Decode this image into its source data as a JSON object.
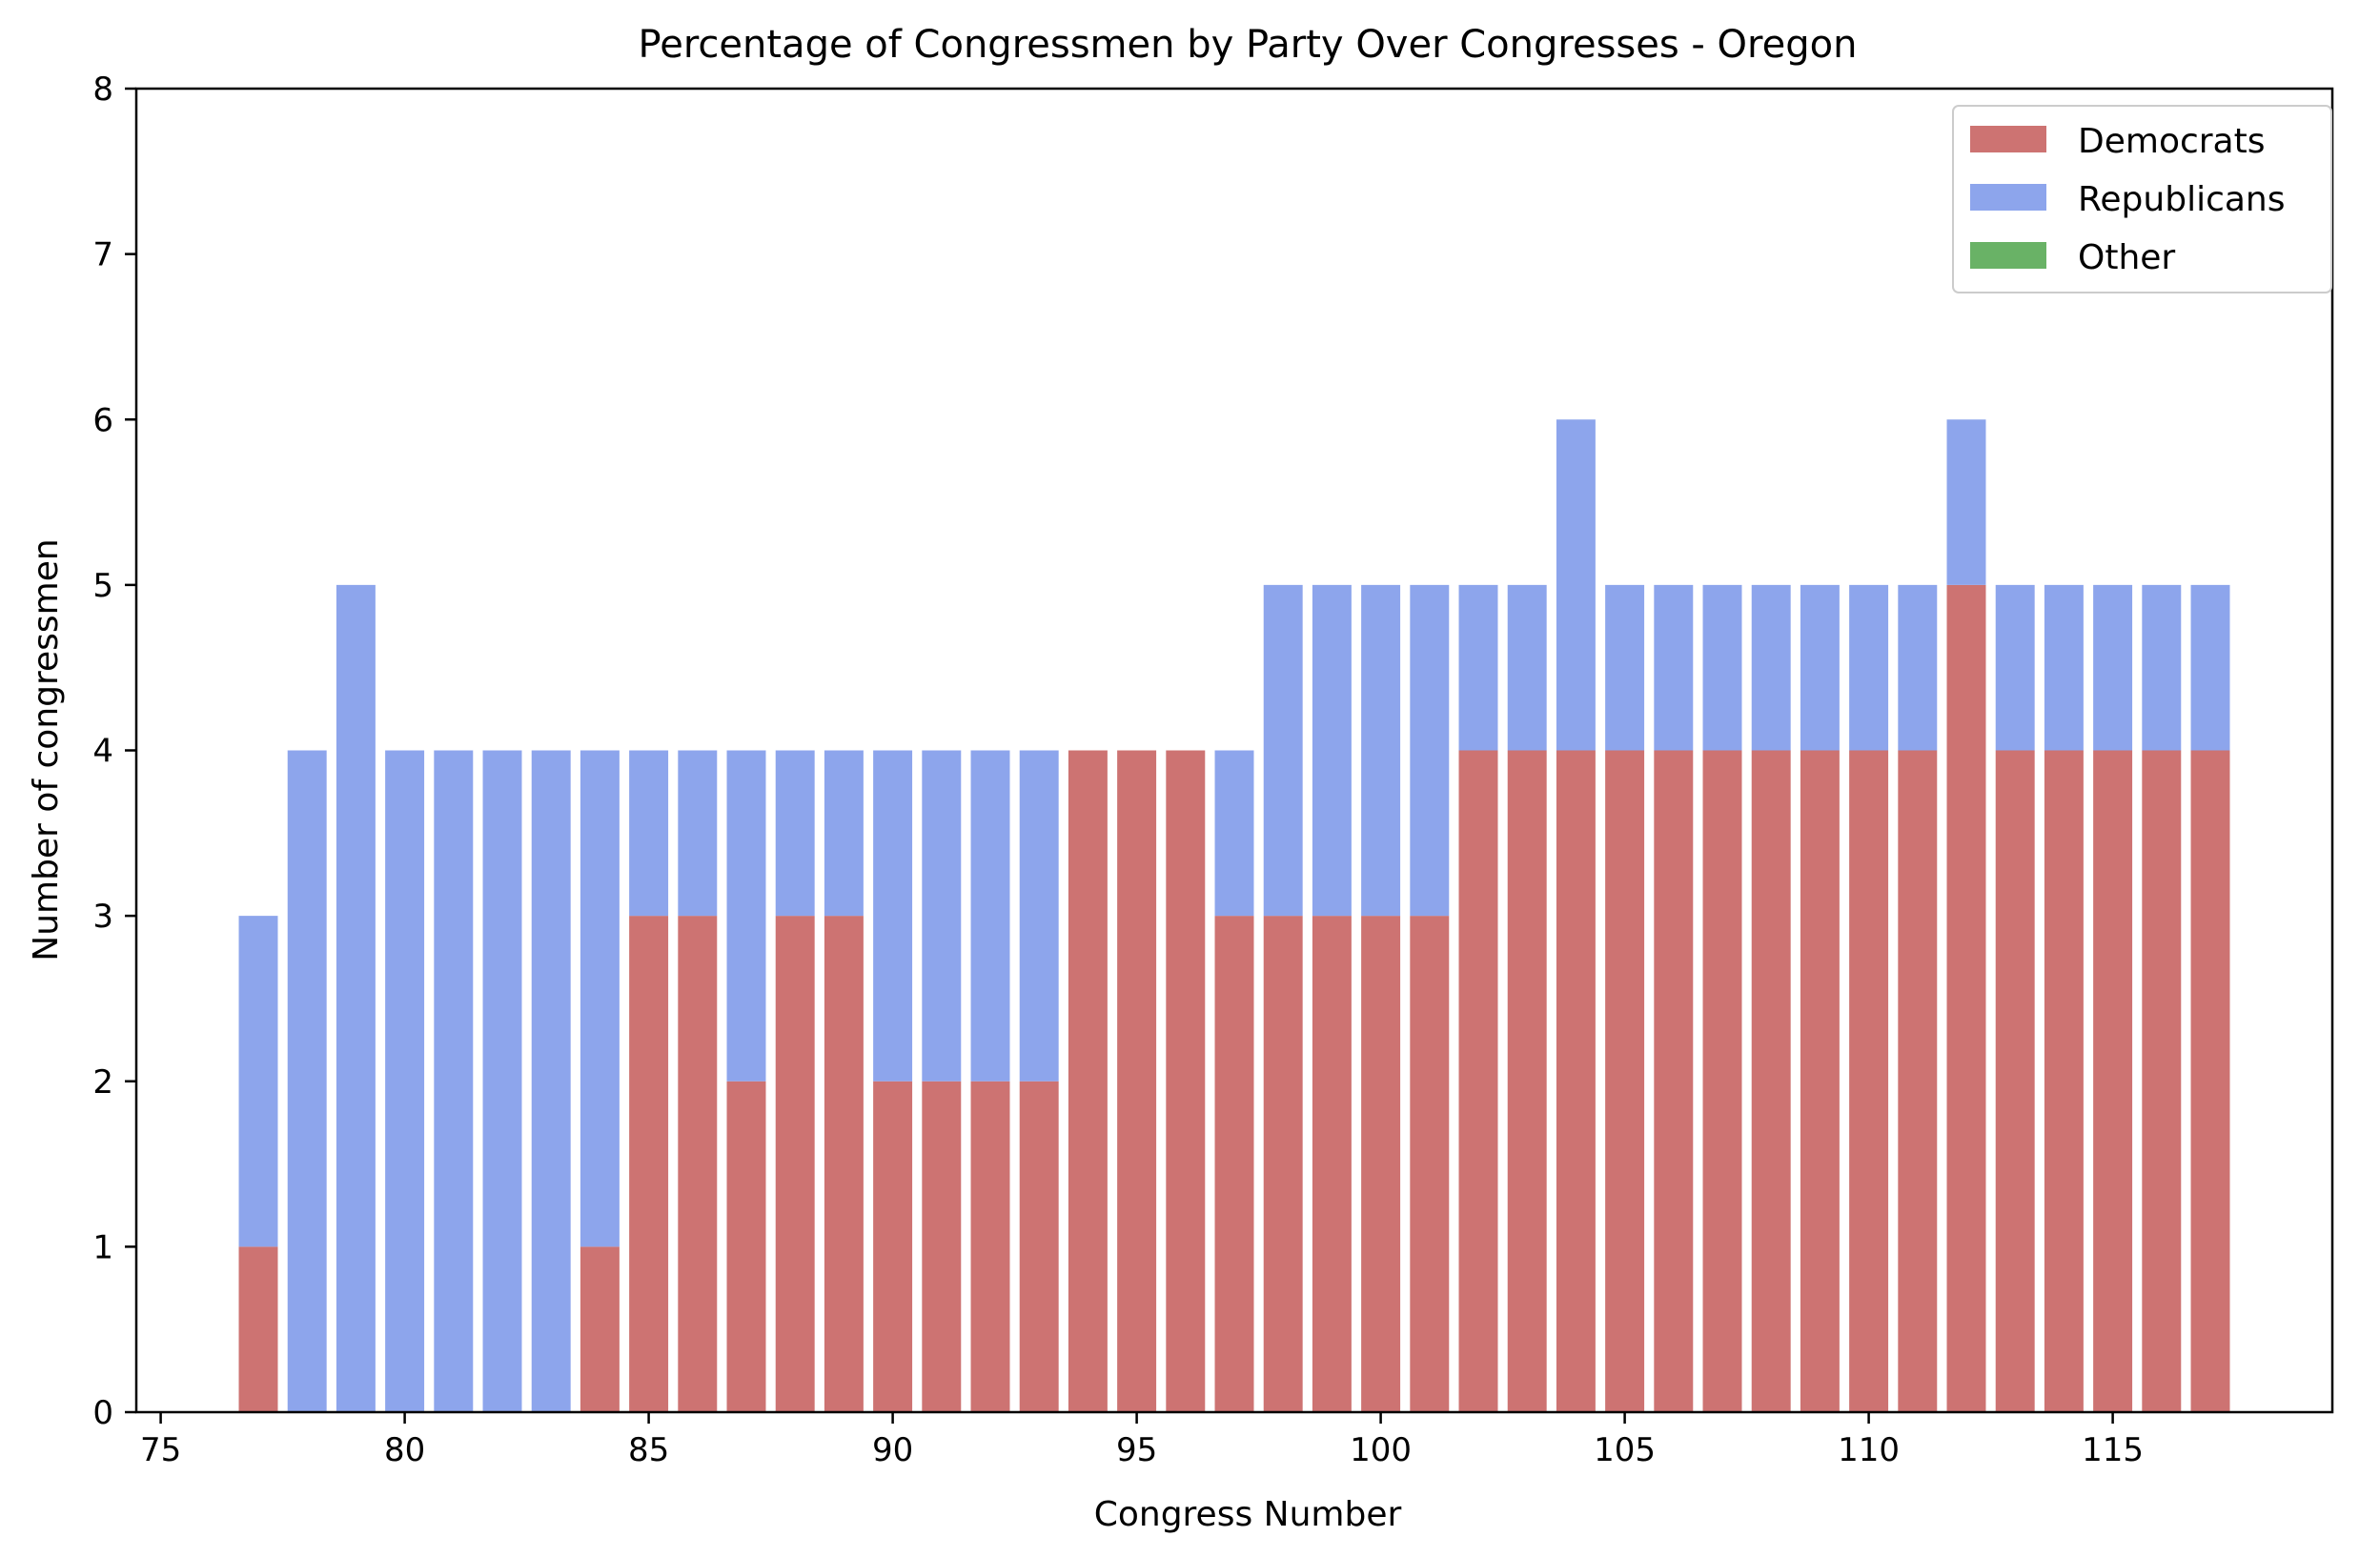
{
  "chart_data": {
    "type": "bar",
    "stacked": true,
    "title": "Percentage of Congressmen by Party Over Congresses - Oregon",
    "xlabel": "Congress Number",
    "ylabel": "Number of congressmen",
    "xlim": [
      74.5,
      119.5
    ],
    "ylim": [
      0,
      8
    ],
    "xticks": [
      "75",
      "80",
      "85",
      "90",
      "95",
      "100",
      "105",
      "110",
      "115"
    ],
    "yticks": [
      "0",
      "1",
      "2",
      "3",
      "4",
      "5",
      "6",
      "7",
      "8"
    ],
    "grid": false,
    "legend_position": "top-right",
    "x": [
      77,
      78,
      79,
      80,
      81,
      82,
      83,
      84,
      85,
      86,
      87,
      88,
      89,
      90,
      91,
      92,
      93,
      94,
      95,
      96,
      97,
      98,
      99,
      100,
      101,
      102,
      103,
      104,
      105,
      106,
      107,
      108,
      109,
      110,
      111,
      112,
      113,
      114,
      115,
      116,
      117
    ],
    "series": [
      {
        "name": "Democrats",
        "color": "#cd7372",
        "values": [
          1,
          0,
          0,
          0,
          0,
          0,
          0,
          1,
          3,
          3,
          2,
          3,
          3,
          2,
          2,
          2,
          2,
          4,
          4,
          4,
          3,
          3,
          3,
          3,
          3,
          4,
          4,
          4,
          4,
          4,
          4,
          4,
          4,
          4,
          4,
          5,
          4,
          4,
          4,
          4,
          4
        ]
      },
      {
        "name": "Republicans",
        "color": "#8da5ec",
        "values": [
          2,
          4,
          5,
          4,
          4,
          4,
          4,
          3,
          1,
          1,
          2,
          1,
          1,
          2,
          2,
          2,
          2,
          0,
          0,
          0,
          1,
          2,
          2,
          2,
          2,
          1,
          1,
          2,
          1,
          1,
          1,
          1,
          1,
          1,
          1,
          1,
          1,
          1,
          1,
          1,
          1
        ]
      },
      {
        "name": "Other",
        "color": "#69b266",
        "values": [
          0,
          0,
          0,
          0,
          0,
          0,
          0,
          0,
          0,
          0,
          0,
          0,
          0,
          0,
          0,
          0,
          0,
          0,
          0,
          0,
          0,
          0,
          0,
          0,
          0,
          0,
          0,
          0,
          0,
          0,
          0,
          0,
          0,
          0,
          0,
          0,
          0,
          0,
          0,
          0,
          0
        ]
      }
    ]
  }
}
